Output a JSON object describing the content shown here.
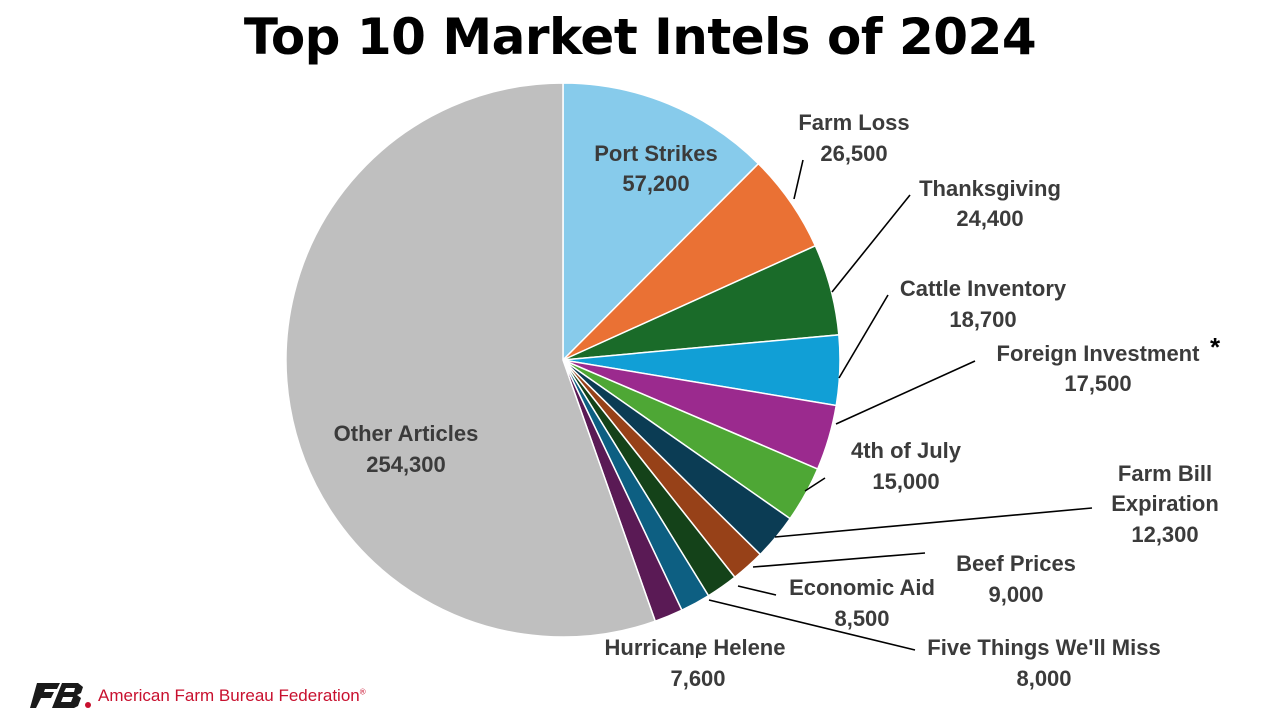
{
  "chart_data": {
    "type": "pie",
    "title": "Top 10 Market Intels of 2024",
    "slices": [
      {
        "label": "Port Strikes",
        "value": 57200,
        "display": "57,200",
        "color": "#87cbeb"
      },
      {
        "label": "Farm Loss",
        "value": 26500,
        "display": "26,500",
        "color": "#ea7134"
      },
      {
        "label": "Thanksgiving",
        "value": 24400,
        "display": "24,400",
        "color": "#1a6b29"
      },
      {
        "label": "Cattle Inventory",
        "value": 18700,
        "display": "18,700",
        "color": "#119fd6"
      },
      {
        "label": "Foreign Investment",
        "note": "*",
        "value": 17500,
        "display": "17,500",
        "color": "#9b2a8e"
      },
      {
        "label": "4th of July",
        "value": 15000,
        "display": "15,000",
        "color": "#4ea735"
      },
      {
        "label": "Farm Bill Expiration",
        "value": 12300,
        "display": "12,300",
        "color": "#0b3c54"
      },
      {
        "label": "Beef Prices",
        "value": 9000,
        "display": "9,000",
        "color": "#974118"
      },
      {
        "label": "Economic Aid",
        "value": 8500,
        "display": "8,500",
        "color": "#144219"
      },
      {
        "label": "Five Things We'll Miss",
        "value": 8000,
        "display": "8,000",
        "color": "#0d5f82"
      },
      {
        "label": "Hurricane Helene",
        "value": 7600,
        "display": "7,600",
        "color": "#5a1a55"
      },
      {
        "label": "Other Articles",
        "value": 254300,
        "display": "254,300",
        "color": "#bfbfbf"
      }
    ],
    "start_angle": "12 o'clock",
    "direction": "clockwise",
    "legend": "none (direct labels)"
  },
  "footer": {
    "organization": "American Farm Bureau Federation",
    "registered_mark": "®"
  },
  "logo": {
    "icon": "afbf-logo-icon",
    "color": "#1a1a1a",
    "accent": "#c8102e"
  }
}
